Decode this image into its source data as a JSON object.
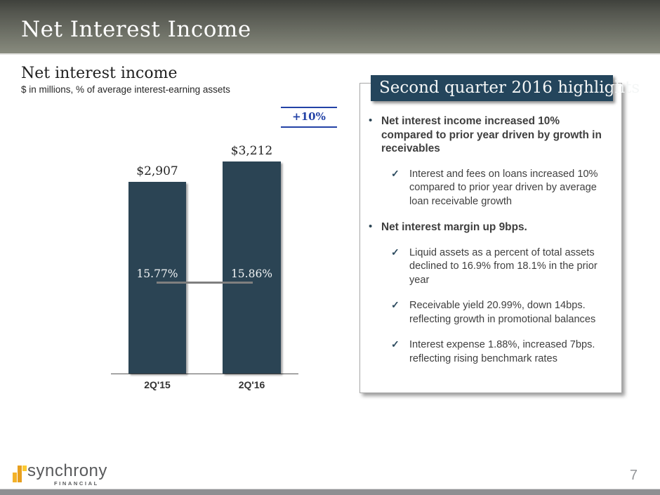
{
  "header": {
    "title": "Net Interest Income"
  },
  "chart_data": {
    "type": "bar",
    "title": "Net interest income",
    "subtitle": "$ in millions, % of average interest-earning assets",
    "categories": [
      "2Q'15",
      "2Q'16"
    ],
    "series": [
      {
        "name": "Net interest income ($ millions)",
        "values": [
          2907,
          3212
        ],
        "labels": [
          "$2,907",
          "$3,212"
        ]
      },
      {
        "name": "% of average interest-earning assets",
        "values": [
          15.77,
          15.86
        ],
        "labels": [
          "15.77%",
          "15.86%"
        ]
      }
    ],
    "annotation": "+10%",
    "ylim": [
      0,
      3600
    ],
    "bar_color": "#2b4454",
    "line_color": "#7f7f7f",
    "annotation_color": "#2342a6",
    "grid": false,
    "legend": "none"
  },
  "highlights": {
    "title": "Second quarter 2016 highlights",
    "items": [
      {
        "level": "bullet",
        "text": "Net interest income increased 10% compared to prior year driven by growth in receivables"
      },
      {
        "level": "check",
        "text": "Interest and fees on loans increased 10% compared to prior year driven by average loan receivable growth"
      },
      {
        "level": "bullet",
        "text": "Net interest margin up 9bps."
      },
      {
        "level": "check",
        "text": "Liquid assets as a percent of total assets declined to 16.9% from 18.1% in the prior year"
      },
      {
        "level": "check",
        "text": "Receivable yield 20.99%, down 14bps. reflecting growth in promotional balances"
      },
      {
        "level": "check",
        "text": "Interest expense 1.88%, increased 7bps. reflecting rising benchmark rates"
      }
    ]
  },
  "icons": {
    "bullet": "•",
    "check": "✓"
  },
  "footer": {
    "brand": "synchrony",
    "brand_sub": "FINANCIAL",
    "page_number": "7"
  },
  "colors": {
    "header_gradient_top": "#3f413c",
    "header_gradient_bottom": "#888b7e",
    "bar_teal": "#2b4454",
    "highlight_title_bg": "#24455c",
    "accent_blue": "#2342a6",
    "brand_gold": "#e79f1f",
    "footer_gray": "#8e8f92"
  }
}
